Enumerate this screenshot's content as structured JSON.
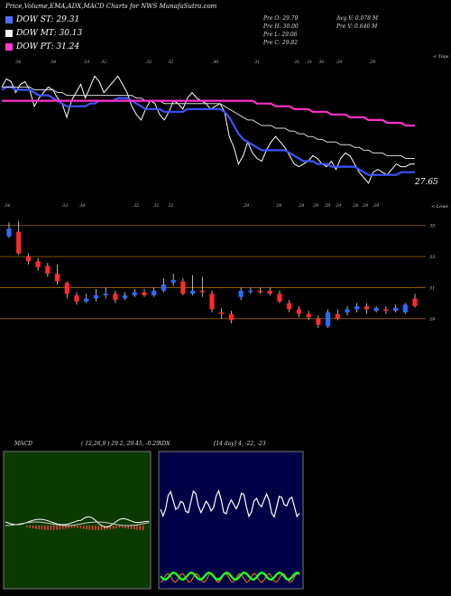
{
  "title": "Price,Volume,EMA,ADX,MACD Charts for NWS MunafaSutra.com",
  "legend": [
    {
      "label": "DOW ST: 29.31",
      "color": "#4f6cff"
    },
    {
      "label": "DOW MT: 30.13",
      "color": "#f3f3f3"
    },
    {
      "label": "DOW PT: 31.24",
      "color": "#ff3ccf"
    }
  ],
  "info": {
    "pre_o": "Pre   O: 29.79",
    "pre_h": "Pre   H: 30.00",
    "pre_l": "Pre   L: 29.06",
    "pre_c": "Pre   C: 29.82",
    "avg_v": "Avg V: 0.078  M",
    "pre_v": "Pre   V: 0.646  M"
  },
  "tops_label": "< Tops",
  "lows_label": "< Lows",
  "last_price_label": "27.65",
  "top_markers": [
    "34",
    "34",
    "33",
    "32",
    "32",
    "32",
    "30",
    "31",
    "31",
    "31",
    "30",
    "29",
    "29"
  ],
  "low_markers": [
    "34",
    "33",
    "34",
    "32",
    "32",
    "32",
    "29",
    "29",
    "29",
    "29",
    "29",
    "29",
    "28",
    "29",
    "29"
  ],
  "macd_panel": {
    "label": "MACD",
    "params": "( 12,26,9 ) 29.2, 29.45, -0.25"
  },
  "adx_panel": {
    "label": "ADX",
    "params": "[14  day] 4, -22, -23"
  },
  "chart_data": [
    {
      "type": "line",
      "name_hint": "price with EMAs",
      "x": [
        1,
        2,
        3,
        4,
        5,
        6,
        7,
        8,
        9,
        10,
        11,
        12,
        13,
        14,
        15,
        16,
        17,
        18,
        19,
        20,
        21,
        22,
        23,
        24,
        25,
        26,
        27,
        28,
        29,
        30,
        31,
        32,
        33,
        34,
        35,
        36,
        37,
        38,
        39,
        40,
        41,
        42,
        43,
        44,
        45,
        46,
        47,
        48,
        49,
        50,
        51,
        52,
        53,
        54,
        55,
        56,
        57,
        58,
        59,
        60,
        61,
        62,
        63,
        64,
        65,
        66,
        67,
        68,
        69,
        70,
        71,
        72,
        73,
        74,
        75,
        76,
        77,
        78,
        79,
        80,
        81,
        82,
        83,
        84,
        85,
        86,
        87,
        88,
        89,
        90
      ],
      "series": [
        {
          "values": [
            31.4,
            31.7,
            31.6,
            31.2,
            31.5,
            31.6,
            31.3,
            30.7,
            31.0,
            31.2,
            31.4,
            31.3,
            31.0,
            30.8,
            30.3,
            30.9,
            31.2,
            31.5,
            31.0,
            31.4,
            31.8,
            31.6,
            31.2,
            31.4,
            31.6,
            31.8,
            31.5,
            31.2,
            30.7,
            30.4,
            30.2,
            30.6,
            30.9,
            30.8,
            30.4,
            30.2,
            30.5,
            30.9,
            30.8,
            30.6,
            31.0,
            31.2,
            31.0,
            30.9,
            30.8,
            30.6,
            30.7,
            30.8,
            30.5,
            29.6,
            29.2,
            28.6,
            28.9,
            29.4,
            29.0,
            28.8,
            28.7,
            29.1,
            29.4,
            29.6,
            29.4,
            29.2,
            28.9,
            28.6,
            28.5,
            28.6,
            28.7,
            28.9,
            28.8,
            28.6,
            28.5,
            28.7,
            28.4,
            28.8,
            29.0,
            28.9,
            28.6,
            28.3,
            28.1,
            27.9,
            28.3,
            28.4,
            28.3,
            28.2,
            28.4,
            28.6,
            28.5,
            28.5,
            28.6,
            28.6
          ]
        },
        {
          "values": [
            31.3,
            31.4,
            31.4,
            31.3,
            31.3,
            31.3,
            31.3,
            31.2,
            31.1,
            31.1,
            31.1,
            31.0,
            30.9,
            30.8,
            30.7,
            30.7,
            30.7,
            30.7,
            30.7,
            30.8,
            30.8,
            30.9,
            30.9,
            30.9,
            30.9,
            31.0,
            31.0,
            31.0,
            30.9,
            30.8,
            30.7,
            30.6,
            30.6,
            30.6,
            30.6,
            30.5,
            30.5,
            30.5,
            30.5,
            30.5,
            30.6,
            30.6,
            30.6,
            30.6,
            30.6,
            30.6,
            30.6,
            30.6,
            30.5,
            30.3,
            30.0,
            29.7,
            29.5,
            29.4,
            29.3,
            29.2,
            29.1,
            29.1,
            29.1,
            29.1,
            29.1,
            29.1,
            29.0,
            28.9,
            28.8,
            28.7,
            28.7,
            28.7,
            28.6,
            28.6,
            28.6,
            28.5,
            28.5,
            28.5,
            28.5,
            28.5,
            28.5,
            28.4,
            28.3,
            28.2,
            28.2,
            28.2,
            28.2,
            28.2,
            28.2,
            28.2,
            28.3,
            28.3,
            28.3,
            28.3
          ]
        },
        {
          "values": [
            31.4,
            31.4,
            31.4,
            31.4,
            31.4,
            31.4,
            31.4,
            31.3,
            31.3,
            31.3,
            31.3,
            31.3,
            31.2,
            31.2,
            31.1,
            31.1,
            31.1,
            31.1,
            31.1,
            31.1,
            31.1,
            31.1,
            31.1,
            31.1,
            31.1,
            31.1,
            31.1,
            31.1,
            31.1,
            31.0,
            31.0,
            30.9,
            30.9,
            30.9,
            30.9,
            30.8,
            30.8,
            30.8,
            30.8,
            30.8,
            30.8,
            30.8,
            30.8,
            30.8,
            30.8,
            30.8,
            30.8,
            30.8,
            30.7,
            30.6,
            30.5,
            30.4,
            30.3,
            30.2,
            30.2,
            30.1,
            30.0,
            30.0,
            30.0,
            29.9,
            29.9,
            29.9,
            29.8,
            29.8,
            29.7,
            29.7,
            29.6,
            29.6,
            29.5,
            29.5,
            29.4,
            29.4,
            29.4,
            29.3,
            29.3,
            29.3,
            29.2,
            29.2,
            29.1,
            29.1,
            29.0,
            29.0,
            29.0,
            28.9,
            28.9,
            28.9,
            28.9,
            28.8,
            28.8,
            28.8
          ]
        },
        {
          "values": [
            30.9,
            30.9,
            30.9,
            30.9,
            30.9,
            30.9,
            30.9,
            30.9,
            30.9,
            30.9,
            30.9,
            30.9,
            30.9,
            30.9,
            30.9,
            30.9,
            30.9,
            30.9,
            30.9,
            30.9,
            30.9,
            30.9,
            30.9,
            30.9,
            30.9,
            30.9,
            30.9,
            30.9,
            30.9,
            30.9,
            30.9,
            30.9,
            30.9,
            30.9,
            30.9,
            30.9,
            30.9,
            30.9,
            30.9,
            30.9,
            30.9,
            30.9,
            30.9,
            30.9,
            30.9,
            30.9,
            30.9,
            30.9,
            30.9,
            30.9,
            30.9,
            30.9,
            30.9,
            30.9,
            30.9,
            30.8,
            30.8,
            30.8,
            30.8,
            30.7,
            30.7,
            30.7,
            30.7,
            30.6,
            30.6,
            30.6,
            30.6,
            30.5,
            30.5,
            30.5,
            30.5,
            30.4,
            30.4,
            30.4,
            30.4,
            30.3,
            30.3,
            30.3,
            30.3,
            30.2,
            30.2,
            30.2,
            30.2,
            30.1,
            30.1,
            30.1,
            30.1,
            30.0,
            30.0,
            30.0
          ]
        }
      ]
    },
    {
      "type": "candlestick",
      "y_ticks": [
        "35",
        "33",
        "31",
        "29"
      ],
      "ylim": [
        28,
        36
      ],
      "candles": [
        {
          "o": 34.3,
          "c": 34.8,
          "h": 35.2,
          "l": 34.2,
          "up": true
        },
        {
          "o": 34.6,
          "c": 33.2,
          "h": 35.3,
          "l": 33.1,
          "up": false
        },
        {
          "o": 33.0,
          "c": 32.7,
          "h": 33.2,
          "l": 32.5,
          "up": false
        },
        {
          "o": 32.7,
          "c": 32.3,
          "h": 32.9,
          "l": 32.1,
          "up": false
        },
        {
          "o": 32.4,
          "c": 31.9,
          "h": 32.6,
          "l": 31.7,
          "up": false
        },
        {
          "o": 31.9,
          "c": 31.4,
          "h": 32.5,
          "l": 31.2,
          "up": false
        },
        {
          "o": 31.3,
          "c": 30.6,
          "h": 31.4,
          "l": 30.3,
          "up": false
        },
        {
          "o": 30.5,
          "c": 30.1,
          "h": 30.7,
          "l": 29.9,
          "up": false
        },
        {
          "o": 30.1,
          "c": 30.3,
          "h": 30.6,
          "l": 30.0,
          "up": true
        },
        {
          "o": 30.3,
          "c": 30.5,
          "h": 30.9,
          "l": 30.1,
          "up": true
        },
        {
          "o": 30.5,
          "c": 30.6,
          "h": 31.0,
          "l": 30.3,
          "up": true
        },
        {
          "o": 30.6,
          "c": 30.2,
          "h": 30.8,
          "l": 30.0,
          "up": false
        },
        {
          "o": 30.3,
          "c": 30.5,
          "h": 30.7,
          "l": 30.2,
          "up": true
        },
        {
          "o": 30.5,
          "c": 30.7,
          "h": 30.9,
          "l": 30.4,
          "up": true
        },
        {
          "o": 30.7,
          "c": 30.5,
          "h": 30.9,
          "l": 30.4,
          "up": false
        },
        {
          "o": 30.5,
          "c": 30.8,
          "h": 31.0,
          "l": 30.4,
          "up": true
        },
        {
          "o": 30.8,
          "c": 31.2,
          "h": 31.6,
          "l": 30.7,
          "up": true
        },
        {
          "o": 31.3,
          "c": 31.5,
          "h": 31.9,
          "l": 31.1,
          "up": true
        },
        {
          "o": 31.4,
          "c": 30.6,
          "h": 31.6,
          "l": 30.5,
          "up": false
        },
        {
          "o": 30.6,
          "c": 30.8,
          "h": 31.8,
          "l": 30.5,
          "up": true
        },
        {
          "o": 30.8,
          "c": 30.7,
          "h": 31.7,
          "l": 30.4,
          "up": false
        },
        {
          "o": 30.6,
          "c": 29.6,
          "h": 30.8,
          "l": 29.4,
          "up": false
        },
        {
          "o": 29.4,
          "c": 29.3,
          "h": 29.7,
          "l": 29.0,
          "up": false
        },
        {
          "o": 29.3,
          "c": 28.9,
          "h": 29.5,
          "l": 28.7,
          "up": false
        },
        {
          "o": 30.4,
          "c": 30.8,
          "h": 31.0,
          "l": 30.2,
          "up": true
        },
        {
          "o": 30.8,
          "c": 30.8,
          "h": 31.0,
          "l": 30.6,
          "up": true
        },
        {
          "o": 30.8,
          "c": 30.7,
          "h": 31.0,
          "l": 30.6,
          "up": false
        },
        {
          "o": 30.8,
          "c": 30.6,
          "h": 31.0,
          "l": 30.5,
          "up": false
        },
        {
          "o": 30.6,
          "c": 30.1,
          "h": 30.8,
          "l": 30.0,
          "up": false
        },
        {
          "o": 30.0,
          "c": 29.6,
          "h": 30.2,
          "l": 29.4,
          "up": false
        },
        {
          "o": 29.6,
          "c": 29.3,
          "h": 29.8,
          "l": 29.1,
          "up": false
        },
        {
          "o": 29.3,
          "c": 29.1,
          "h": 29.5,
          "l": 28.9,
          "up": false
        },
        {
          "o": 29.0,
          "c": 28.6,
          "h": 29.2,
          "l": 28.4,
          "up": false
        },
        {
          "o": 28.5,
          "c": 29.4,
          "h": 29.6,
          "l": 28.4,
          "up": true
        },
        {
          "o": 29.3,
          "c": 29.0,
          "h": 29.6,
          "l": 28.9,
          "up": false
        },
        {
          "o": 29.4,
          "c": 29.6,
          "h": 29.8,
          "l": 29.2,
          "up": true
        },
        {
          "o": 29.6,
          "c": 29.8,
          "h": 30.0,
          "l": 29.4,
          "up": true
        },
        {
          "o": 29.8,
          "c": 29.6,
          "h": 30.0,
          "l": 29.3,
          "up": false
        },
        {
          "o": 29.5,
          "c": 29.7,
          "h": 29.8,
          "l": 29.4,
          "up": true
        },
        {
          "o": 29.6,
          "c": 29.5,
          "h": 29.8,
          "l": 29.3,
          "up": false
        },
        {
          "o": 29.5,
          "c": 29.7,
          "h": 29.9,
          "l": 29.4,
          "up": true
        },
        {
          "o": 29.4,
          "c": 29.9,
          "h": 30.0,
          "l": 29.3,
          "up": true
        },
        {
          "o": 29.8,
          "c": 30.3,
          "h": 30.6,
          "l": 29.7,
          "up": false
        }
      ]
    }
  ]
}
